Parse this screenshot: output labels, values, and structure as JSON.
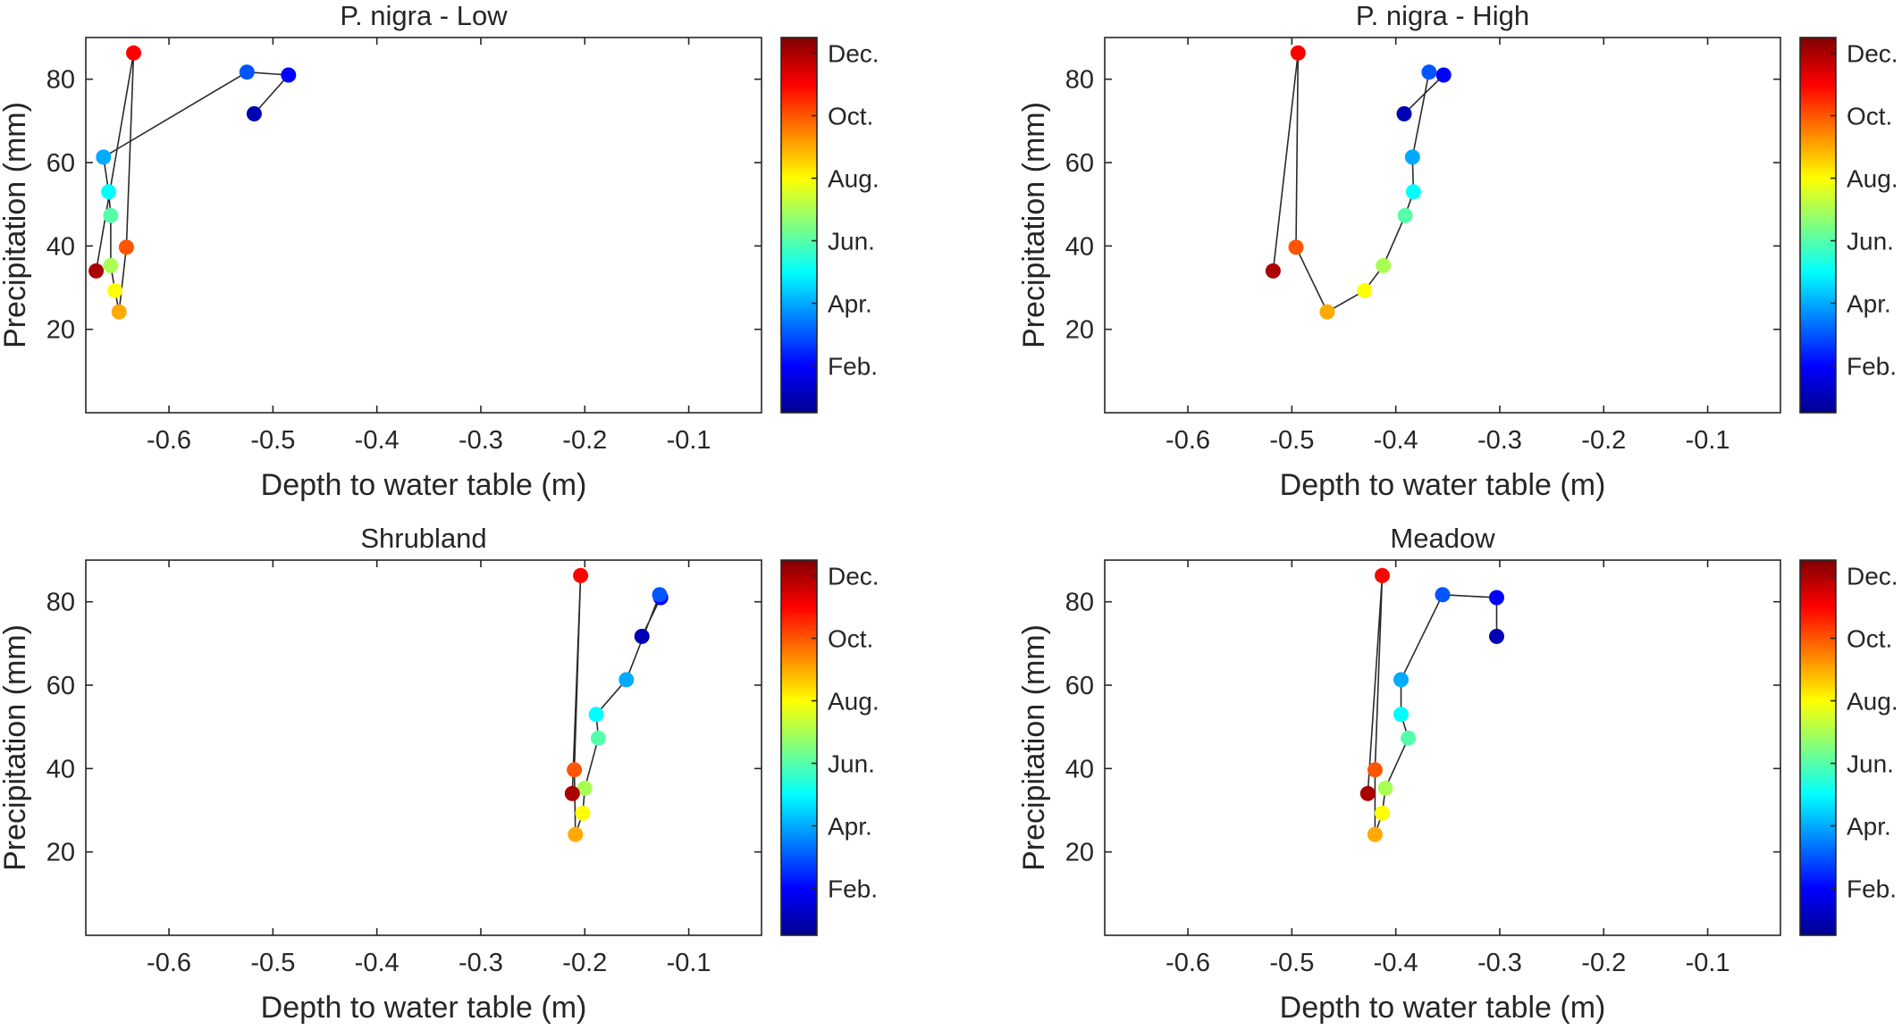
{
  "colorbar": {
    "colors": [
      "#00008f",
      "#0000ff",
      "#0080ff",
      "#00ffff",
      "#80ff80",
      "#ffff00",
      "#ff8000",
      "#ff0000",
      "#800000"
    ],
    "ticks": [
      {
        "label": "Feb.",
        "value": 2
      },
      {
        "label": "Apr.",
        "value": 4
      },
      {
        "label": "Jun.",
        "value": 6
      },
      {
        "label": "Aug.",
        "value": 8
      },
      {
        "label": "Oct.",
        "value": 10
      },
      {
        "label": "Dec.",
        "value": 12
      }
    ],
    "range": [
      0.5,
      12.5
    ]
  },
  "chart_data": [
    {
      "type": "scatter",
      "title": "P. nigra - Low",
      "xlabel": "Depth to water table (m)",
      "ylabel": "Precipitation (mm)",
      "xlim": [
        -0.68,
        -0.03
      ],
      "ylim": [
        0,
        90
      ],
      "xticks": [
        {
          "value": -0.6,
          "label": "-0.6"
        },
        {
          "value": -0.5,
          "label": "-0.5"
        },
        {
          "value": -0.4,
          "label": "-0.4"
        },
        {
          "value": -0.3,
          "label": "-0.3"
        },
        {
          "value": -0.2,
          "label": "-0.2"
        },
        {
          "value": -0.1,
          "label": "-0.1"
        }
      ],
      "yticks": [
        {
          "value": 20,
          "label": "20"
        },
        {
          "value": 40,
          "label": "40"
        },
        {
          "value": 60,
          "label": "60"
        },
        {
          "value": 80,
          "label": "80"
        }
      ],
      "points": [
        {
          "month": 1,
          "x": -0.518,
          "y": 71.7
        },
        {
          "month": 2,
          "x": -0.485,
          "y": 81.0
        },
        {
          "month": 3,
          "x": -0.525,
          "y": 81.7
        },
        {
          "month": 4,
          "x": -0.663,
          "y": 61.3
        },
        {
          "month": 5,
          "x": -0.658,
          "y": 53.0
        },
        {
          "month": 6,
          "x": -0.656,
          "y": 47.3
        },
        {
          "month": 7,
          "x": -0.656,
          "y": 35.3
        },
        {
          "month": 8,
          "x": -0.652,
          "y": 29.3
        },
        {
          "month": 9,
          "x": -0.648,
          "y": 24.2
        },
        {
          "month": 10,
          "x": -0.641,
          "y": 39.7
        },
        {
          "month": 11,
          "x": -0.634,
          "y": 86.3
        },
        {
          "month": 12,
          "x": -0.67,
          "y": 34.0
        }
      ]
    },
    {
      "type": "scatter",
      "title": "P. nigra - High",
      "xlabel": "Depth to water table (m)",
      "ylabel": "Precipitation (mm)",
      "xlim": [
        -0.68,
        -0.03
      ],
      "ylim": [
        0,
        90
      ],
      "xticks": [
        {
          "value": -0.6,
          "label": "-0.6"
        },
        {
          "value": -0.5,
          "label": "-0.5"
        },
        {
          "value": -0.4,
          "label": "-0.4"
        },
        {
          "value": -0.3,
          "label": "-0.3"
        },
        {
          "value": -0.2,
          "label": "-0.2"
        },
        {
          "value": -0.1,
          "label": "-0.1"
        }
      ],
      "yticks": [
        {
          "value": 20,
          "label": "20"
        },
        {
          "value": 40,
          "label": "40"
        },
        {
          "value": 60,
          "label": "60"
        },
        {
          "value": 80,
          "label": "80"
        }
      ],
      "points": [
        {
          "month": 1,
          "x": -0.392,
          "y": 71.7
        },
        {
          "month": 2,
          "x": -0.354,
          "y": 81.0
        },
        {
          "month": 3,
          "x": -0.368,
          "y": 81.7
        },
        {
          "month": 4,
          "x": -0.384,
          "y": 61.3
        },
        {
          "month": 5,
          "x": -0.383,
          "y": 53.0
        },
        {
          "month": 6,
          "x": -0.391,
          "y": 47.3
        },
        {
          "month": 7,
          "x": -0.412,
          "y": 35.3
        },
        {
          "month": 8,
          "x": -0.43,
          "y": 29.3
        },
        {
          "month": 9,
          "x": -0.466,
          "y": 24.2
        },
        {
          "month": 10,
          "x": -0.496,
          "y": 39.7
        },
        {
          "month": 11,
          "x": -0.494,
          "y": 86.3
        },
        {
          "month": 12,
          "x": -0.518,
          "y": 34.0
        }
      ]
    },
    {
      "type": "scatter",
      "title": "Shrubland",
      "xlabel": "Depth to water table (m)",
      "ylabel": "Precipitation (mm)",
      "xlim": [
        -0.68,
        -0.03
      ],
      "ylim": [
        0,
        90
      ],
      "xticks": [
        {
          "value": -0.6,
          "label": "-0.6"
        },
        {
          "value": -0.5,
          "label": "-0.5"
        },
        {
          "value": -0.4,
          "label": "-0.4"
        },
        {
          "value": -0.3,
          "label": "-0.3"
        },
        {
          "value": -0.2,
          "label": "-0.2"
        },
        {
          "value": -0.1,
          "label": "-0.1"
        }
      ],
      "yticks": [
        {
          "value": 20,
          "label": "20"
        },
        {
          "value": 40,
          "label": "40"
        },
        {
          "value": 60,
          "label": "60"
        },
        {
          "value": 80,
          "label": "80"
        }
      ],
      "points": [
        {
          "month": 1,
          "x": -0.145,
          "y": 71.7
        },
        {
          "month": 2,
          "x": -0.127,
          "y": 81.0
        },
        {
          "month": 3,
          "x": -0.128,
          "y": 81.7
        },
        {
          "month": 4,
          "x": -0.16,
          "y": 61.3
        },
        {
          "month": 5,
          "x": -0.189,
          "y": 53.0
        },
        {
          "month": 6,
          "x": -0.187,
          "y": 47.3
        },
        {
          "month": 7,
          "x": -0.2,
          "y": 35.3
        },
        {
          "month": 8,
          "x": -0.202,
          "y": 29.3
        },
        {
          "month": 9,
          "x": -0.209,
          "y": 24.2
        },
        {
          "month": 10,
          "x": -0.21,
          "y": 39.7
        },
        {
          "month": 11,
          "x": -0.204,
          "y": 86.3
        },
        {
          "month": 12,
          "x": -0.212,
          "y": 34.0
        }
      ]
    },
    {
      "type": "scatter",
      "title": "Meadow",
      "xlabel": "Depth to water table (m)",
      "ylabel": "Precipitation (mm)",
      "xlim": [
        -0.68,
        -0.03
      ],
      "ylim": [
        0,
        90
      ],
      "xticks": [
        {
          "value": -0.6,
          "label": "-0.6"
        },
        {
          "value": -0.5,
          "label": "-0.5"
        },
        {
          "value": -0.4,
          "label": "-0.4"
        },
        {
          "value": -0.3,
          "label": "-0.3"
        },
        {
          "value": -0.2,
          "label": "-0.2"
        },
        {
          "value": -0.1,
          "label": "-0.1"
        }
      ],
      "yticks": [
        {
          "value": 20,
          "label": "20"
        },
        {
          "value": 40,
          "label": "40"
        },
        {
          "value": 60,
          "label": "60"
        },
        {
          "value": 80,
          "label": "80"
        }
      ],
      "points": [
        {
          "month": 1,
          "x": -0.303,
          "y": 71.7
        },
        {
          "month": 2,
          "x": -0.303,
          "y": 81.0
        },
        {
          "month": 3,
          "x": -0.355,
          "y": 81.7
        },
        {
          "month": 4,
          "x": -0.395,
          "y": 61.3
        },
        {
          "month": 5,
          "x": -0.395,
          "y": 53.0
        },
        {
          "month": 6,
          "x": -0.388,
          "y": 47.3
        },
        {
          "month": 7,
          "x": -0.41,
          "y": 35.3
        },
        {
          "month": 8,
          "x": -0.413,
          "y": 29.3
        },
        {
          "month": 9,
          "x": -0.42,
          "y": 24.2
        },
        {
          "month": 10,
          "x": -0.42,
          "y": 39.7
        },
        {
          "month": 11,
          "x": -0.413,
          "y": 86.3
        },
        {
          "month": 12,
          "x": -0.427,
          "y": 34.0
        }
      ]
    }
  ]
}
